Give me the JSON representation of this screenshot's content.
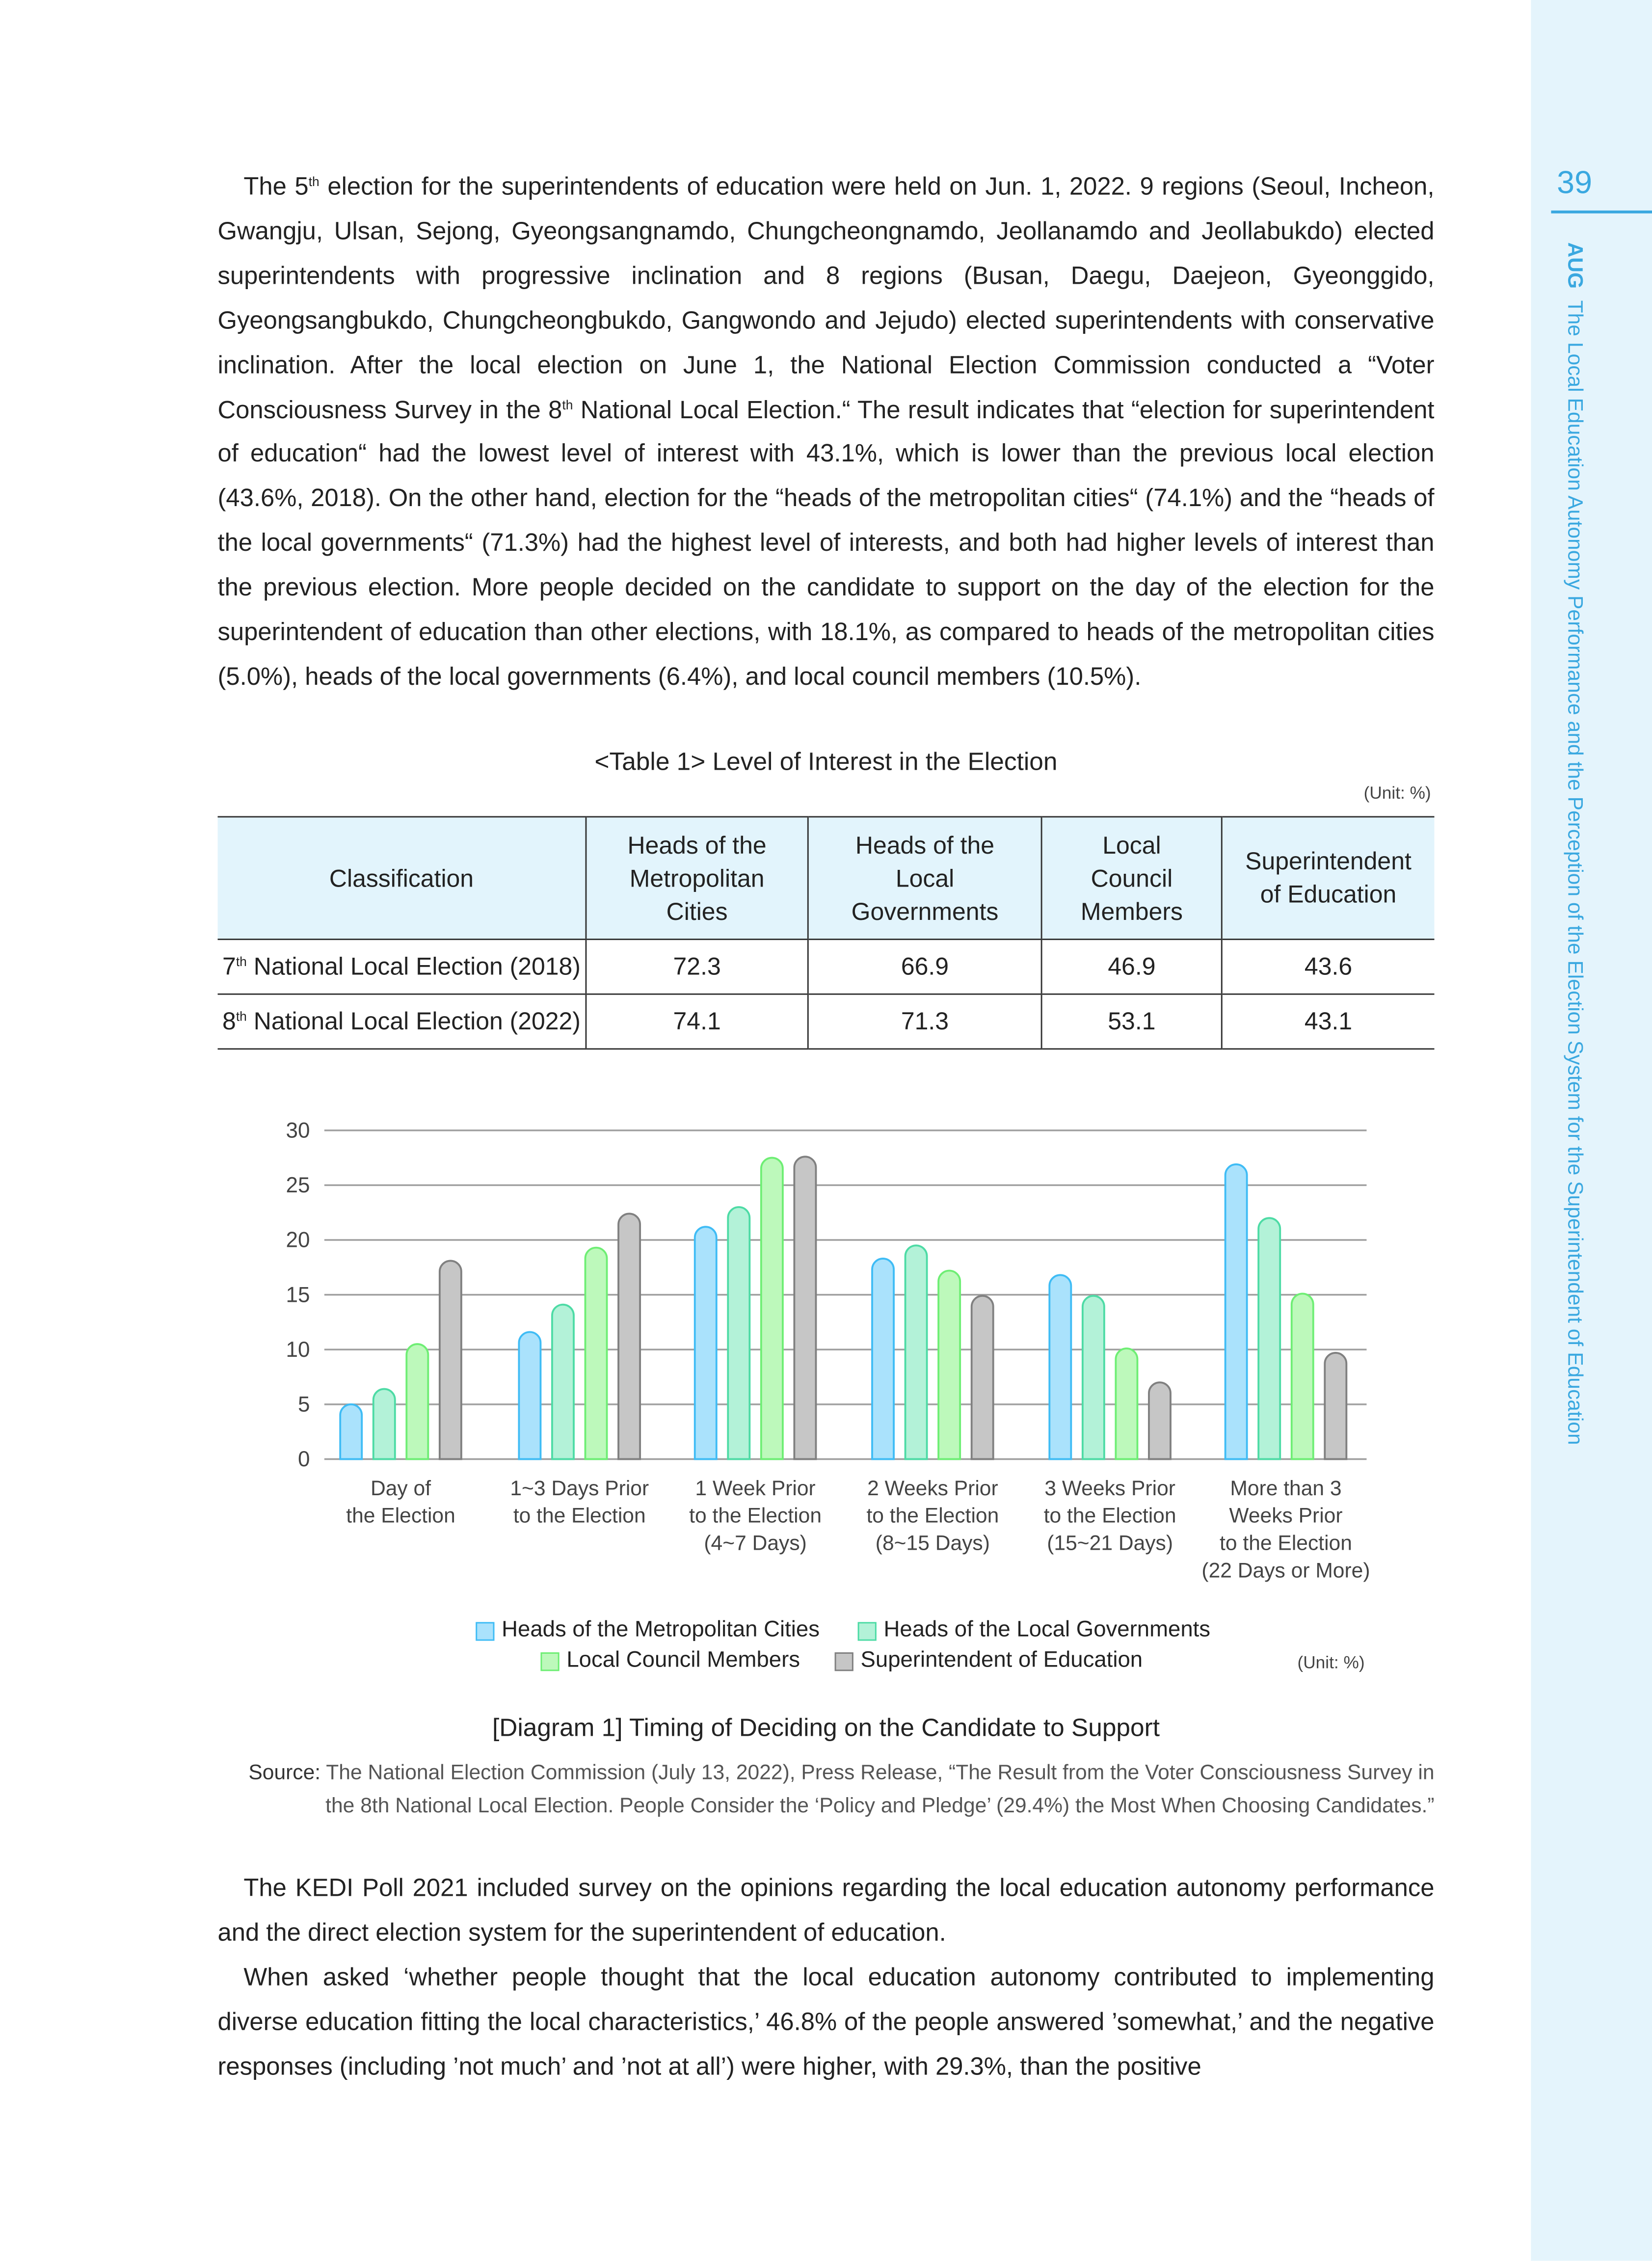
{
  "sidebar": {
    "page_number": "39",
    "journal": "AUG",
    "running_title": "The Local Education Autonomy Performance and the Perception of the Election System for the Superintendent of Education"
  },
  "paragraph1": {
    "a": "The 5",
    "sup1": "th",
    "b": " election for the superintendents of education were held on Jun. 1, 2022. 9 regions (Seoul, Incheon, Gwangju, Ulsan, Sejong, Gyeongsangnamdo, Chungcheongnamdo, Jeollanamdo and Jeollabukdo) elected superintendents with progressive inclination and 8 regions (Busan, Daegu, Daejeon, Gyeonggido, Gyeongsangbukdo, Chungcheongbukdo, Gangwondo and Jejudo) elected superintendents with conservative inclination. After the local election on June 1, the National Election Commission conducted a “Voter Consciousness Survey in the 8",
    "sup2": "th",
    "c": " National Local Election.“ The result indicates that “election for superintendent of education“ had the lowest level of interest with 43.1%, which is lower than the previous local election (43.6%, 2018). On the other hand, election for the “heads of the metropolitan cities“ (74.1%) and the “heads of the local governments“ (71.3%) had the highest level of interests, and both had higher levels of interest than the previous election. More people decided on the candidate to support on the day of the election for the superintendent of education than other elections, with 18.1%, as compared to heads of the metropolitan cities (5.0%), heads of the local governments (6.4%), and local council members (10.5%)."
  },
  "table1": {
    "caption": "<Table 1> Level of Interest in the Election",
    "unit": "(Unit: %)",
    "headers": [
      "Classification",
      "Heads of the Metropolitan Cities",
      "Heads of the Local Governments",
      "Local Council Members",
      "Superintendent of Education"
    ],
    "rows": [
      {
        "ord": "7",
        "sup": "th",
        "label": " National Local Election (2018)",
        "values": [
          "72.3",
          "66.9",
          "46.9",
          "43.6"
        ]
      },
      {
        "ord": "8",
        "sup": "th",
        "label": " National Local Election (2022)",
        "values": [
          "74.1",
          "71.3",
          "53.1",
          "43.1"
        ]
      }
    ]
  },
  "chart_data": {
    "type": "bar",
    "title": "[Diagram 1] Timing of Deciding on the Candidate to Support",
    "unit": "(Unit: %)",
    "ylim": [
      0,
      30
    ],
    "yticks": [
      "0",
      "5",
      "10",
      "15",
      "20",
      "25",
      "30"
    ],
    "categories": [
      [
        "Day of",
        "the Election"
      ],
      [
        "1~3 Days Prior",
        "to the Election"
      ],
      [
        "1 Week Prior",
        "to the Election",
        "(4~7 Days)"
      ],
      [
        "2 Weeks Prior",
        "to the Election",
        "(8~15 Days)"
      ],
      [
        "3 Weeks Prior",
        "to the Election",
        "(15~21 Days)"
      ],
      [
        "More than 3",
        "Weeks Prior",
        "to the Election",
        "(22 Days or More)"
      ]
    ],
    "series": [
      {
        "name": "Heads of the Metropolitan Cities",
        "fill": "#aae2fc",
        "stroke": "#3fbcf5",
        "values": [
          5.0,
          11.6,
          21.2,
          18.3,
          16.8,
          26.9
        ]
      },
      {
        "name": "Heads of the Local Governments",
        "fill": "#b3f2d8",
        "stroke": "#4ddba5",
        "values": [
          6.4,
          14.1,
          23.0,
          19.5,
          14.9,
          22.0
        ]
      },
      {
        "name": "Local Council Members",
        "fill": "#bdf9bb",
        "stroke": "#6eee74",
        "values": [
          10.5,
          19.3,
          27.5,
          17.2,
          10.1,
          15.1
        ]
      },
      {
        "name": "Superintendent of Education",
        "fill": "#c6c6c6",
        "stroke": "#808080",
        "values": [
          18.1,
          22.4,
          27.6,
          14.9,
          7.0,
          9.7
        ]
      }
    ]
  },
  "source": {
    "label": "Source:",
    "text": "The National Election Commission (July 13, 2022), Press Release, “The Result from the Voter Consciousness Survey in the 8th National Local Election. People Consider the ‘Policy and Pledge’ (29.4%) the Most When Choosing Candidates.”"
  },
  "paragraph2": "The KEDI Poll 2021 included survey on the opinions regarding the local education autonomy performance and the direct election system for the superintendent of education.",
  "paragraph3": "When asked ‘whether people thought that the local education autonomy contributed to implementing diverse education fitting the local characteristics,’ 46.8% of the people answered ’somewhat,’ and the negative responses (including ’not much’ and ’not at all’) were higher, with 29.3%, than the positive"
}
